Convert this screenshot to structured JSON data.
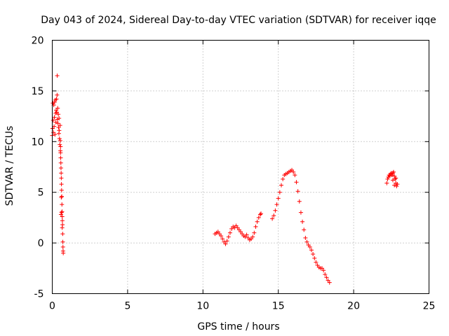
{
  "chart_data": {
    "type": "scatter",
    "title": "Day 043 of 2024, Sidereal Day-to-day VTEC variation (SDTVAR) for receiver iqqe",
    "xlabel": "GPS time / hours",
    "ylabel": "SDTVAR / TECUs",
    "xlim": [
      0,
      25
    ],
    "ylim": [
      -5,
      20
    ],
    "x_ticks": [
      0,
      5,
      10,
      15,
      20,
      25
    ],
    "x_tick_labels": [
      "0",
      "5",
      "10",
      "15",
      "20",
      "25"
    ],
    "y_ticks": [
      -5,
      0,
      5,
      10,
      15,
      20
    ],
    "y_tick_labels": [
      "-5",
      "0",
      "5",
      "10",
      "15",
      "20"
    ],
    "grid": true,
    "marker": "plus",
    "series_color": "#ff0000",
    "series": [
      {
        "name": "SDTVAR",
        "points": [
          [
            0.0,
            10.6
          ],
          [
            0.02,
            11.3
          ],
          [
            0.04,
            13.8
          ],
          [
            0.06,
            12.1
          ],
          [
            0.08,
            10.9
          ],
          [
            0.1,
            13.6
          ],
          [
            0.12,
            11.5
          ],
          [
            0.14,
            12.4
          ],
          [
            0.16,
            13.9
          ],
          [
            0.18,
            10.7
          ],
          [
            0.2,
            14.1
          ],
          [
            0.22,
            12.8
          ],
          [
            0.24,
            11.9
          ],
          [
            0.26,
            13.1
          ],
          [
            0.28,
            14.2
          ],
          [
            0.3,
            12.9
          ],
          [
            0.32,
            14.6
          ],
          [
            0.33,
            16.5
          ],
          [
            0.34,
            12.2
          ],
          [
            0.36,
            13.3
          ],
          [
            0.38,
            11.8
          ],
          [
            0.4,
            12.7
          ],
          [
            0.42,
            11.4
          ],
          [
            0.44,
            10.8
          ],
          [
            0.45,
            12.3
          ],
          [
            0.46,
            11.1
          ],
          [
            0.48,
            10.3
          ],
          [
            0.5,
            9.7
          ],
          [
            0.52,
            11.6
          ],
          [
            0.53,
            10.1
          ],
          [
            0.54,
            9.1
          ],
          [
            0.55,
            8.9
          ],
          [
            0.56,
            8.4
          ],
          [
            0.57,
            7.9
          ],
          [
            0.58,
            7.4
          ],
          [
            0.59,
            6.9
          ],
          [
            0.6,
            6.4
          ],
          [
            0.61,
            5.8
          ],
          [
            0.62,
            5.2
          ],
          [
            0.63,
            4.6
          ],
          [
            0.64,
            3.8
          ],
          [
            0.65,
            3.1
          ],
          [
            0.66,
            2.6
          ],
          [
            0.67,
            2.2
          ],
          [
            0.68,
            1.8
          ],
          [
            0.69,
            0.9
          ],
          [
            0.7,
            0.1
          ],
          [
            0.71,
            -0.4
          ],
          [
            0.72,
            -0.8
          ],
          [
            0.73,
            -1.0
          ],
          [
            0.6,
            4.5
          ],
          [
            0.62,
            3.0
          ],
          [
            0.58,
            2.8
          ],
          [
            0.66,
            1.5
          ],
          [
            0.55,
            9.5
          ],
          [
            10.8,
            0.9
          ],
          [
            10.9,
            1.0
          ],
          [
            11.0,
            1.1
          ],
          [
            11.1,
            0.9
          ],
          [
            11.2,
            0.7
          ],
          [
            11.3,
            0.4
          ],
          [
            11.4,
            0.1
          ],
          [
            11.5,
            -0.1
          ],
          [
            11.6,
            0.2
          ],
          [
            11.7,
            0.6
          ],
          [
            11.8,
            1.0
          ],
          [
            11.9,
            1.4
          ],
          [
            12.0,
            1.6
          ],
          [
            12.1,
            1.5
          ],
          [
            12.2,
            1.7
          ],
          [
            12.3,
            1.5
          ],
          [
            12.4,
            1.3
          ],
          [
            12.5,
            1.1
          ],
          [
            12.6,
            0.9
          ],
          [
            12.7,
            0.7
          ],
          [
            12.8,
            0.6
          ],
          [
            12.9,
            0.8
          ],
          [
            13.0,
            0.5
          ],
          [
            13.1,
            0.3
          ],
          [
            13.2,
            0.4
          ],
          [
            13.3,
            0.6
          ],
          [
            13.4,
            1.0
          ],
          [
            13.5,
            1.6
          ],
          [
            13.6,
            2.1
          ],
          [
            13.7,
            2.5
          ],
          [
            13.8,
            2.8
          ],
          [
            13.85,
            2.9
          ],
          [
            14.6,
            2.4
          ],
          [
            14.7,
            2.7
          ],
          [
            14.8,
            3.2
          ],
          [
            14.9,
            3.8
          ],
          [
            15.0,
            4.4
          ],
          [
            15.1,
            5.0
          ],
          [
            15.2,
            5.7
          ],
          [
            15.3,
            6.3
          ],
          [
            15.4,
            6.7
          ],
          [
            15.5,
            6.8
          ],
          [
            15.6,
            6.9
          ],
          [
            15.7,
            7.0
          ],
          [
            15.8,
            7.1
          ],
          [
            15.9,
            7.2
          ],
          [
            16.0,
            7.0
          ],
          [
            16.1,
            6.7
          ],
          [
            16.2,
            6.0
          ],
          [
            16.3,
            5.1
          ],
          [
            16.4,
            4.1
          ],
          [
            16.5,
            3.0
          ],
          [
            16.6,
            2.1
          ],
          [
            16.7,
            1.3
          ],
          [
            16.8,
            0.5
          ],
          [
            16.9,
            0.1
          ],
          [
            17.0,
            -0.2
          ],
          [
            17.1,
            -0.4
          ],
          [
            17.2,
            -0.7
          ],
          [
            17.3,
            -1.1
          ],
          [
            17.4,
            -1.5
          ],
          [
            17.5,
            -1.9
          ],
          [
            17.6,
            -2.2
          ],
          [
            17.7,
            -2.4
          ],
          [
            17.8,
            -2.5
          ],
          [
            17.9,
            -2.5
          ],
          [
            18.0,
            -2.7
          ],
          [
            18.1,
            -3.1
          ],
          [
            18.2,
            -3.4
          ],
          [
            18.3,
            -3.7
          ],
          [
            18.4,
            -3.9
          ],
          [
            22.2,
            5.9
          ],
          [
            22.25,
            6.3
          ],
          [
            22.3,
            6.5
          ],
          [
            22.35,
            6.7
          ],
          [
            22.4,
            6.6
          ],
          [
            22.45,
            6.8
          ],
          [
            22.5,
            6.9
          ],
          [
            22.55,
            6.7
          ],
          [
            22.6,
            6.9
          ],
          [
            22.65,
            7.0
          ],
          [
            22.7,
            6.6
          ],
          [
            22.75,
            6.3
          ],
          [
            22.8,
            5.9
          ],
          [
            22.85,
            5.6
          ],
          [
            22.9,
            5.8
          ],
          [
            22.6,
            6.2
          ],
          [
            22.7,
            5.7
          ],
          [
            22.8,
            6.4
          ]
        ]
      }
    ]
  }
}
